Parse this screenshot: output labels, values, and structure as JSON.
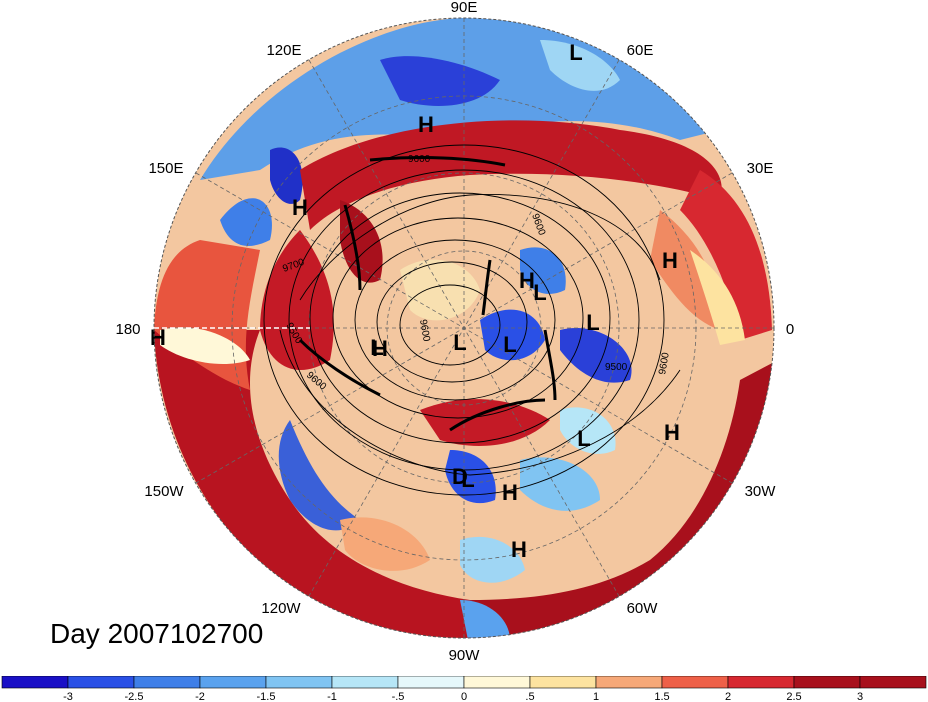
{
  "day_label": "Day 2007102700",
  "longitude_labels": [
    "90E",
    "60E",
    "30E",
    "0",
    "30W",
    "60W",
    "90W",
    "120W",
    "150W",
    "180",
    "150E",
    "120E"
  ],
  "pressure_systems": [
    "L",
    "H",
    "H",
    "H",
    "H",
    "L",
    "L",
    "L",
    "H",
    "L",
    "L",
    "L",
    "H",
    "L",
    "H",
    "D",
    "H",
    "H"
  ],
  "contour_labels": [
    "9600",
    "9600",
    "9700",
    "9500",
    "9600",
    "9600",
    "9500",
    "9600"
  ],
  "colorbar": {
    "ticks": [
      "-3",
      "-2.5",
      "-2",
      "-1.5",
      "-1",
      "-.5",
      "0",
      ".5",
      "1",
      "1.5",
      "2",
      "2.5",
      "3"
    ],
    "colors": [
      "#1a10c6",
      "#2a50e6",
      "#3f7fe8",
      "#5aa2ee",
      "#80c4f2",
      "#b6e6f7",
      "#e6f8fb",
      "#fff8d8",
      "#fde3a0",
      "#f6a878",
      "#ee6048",
      "#d72830",
      "#a8101c"
    ]
  }
}
